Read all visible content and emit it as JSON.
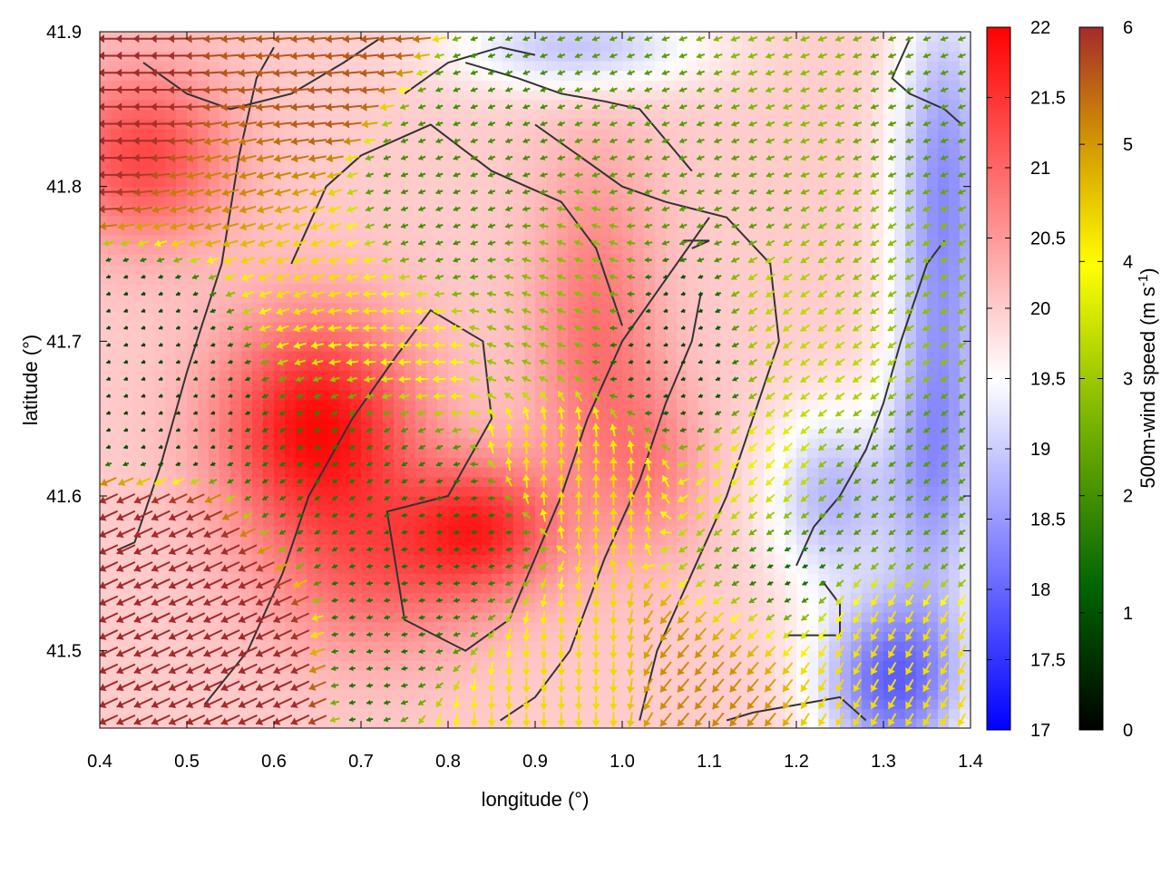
{
  "chart_data": {
    "type": "heatmap",
    "title": "",
    "xlabel": "longitude (°)",
    "ylabel": "latitude (°)",
    "xlim": [
      0.4,
      1.4
    ],
    "ylim": [
      41.45,
      41.9
    ],
    "x_ticks": [
      0.4,
      0.5,
      0.6,
      0.7,
      0.8,
      0.9,
      1.0,
      1.1,
      1.2,
      1.3,
      1.4
    ],
    "x_tick_labels": [
      "0.4",
      "0.5",
      "0.6",
      "0.7",
      "0.8",
      "0.9",
      "1.0",
      "1.1",
      "1.2",
      "1.3",
      "1.4"
    ],
    "y_ticks": [
      41.5,
      41.6,
      41.7,
      41.8,
      41.9
    ],
    "y_tick_labels": [
      "41.5",
      "41.6",
      "41.7",
      "41.8",
      "41.9"
    ],
    "grid": false,
    "temperature_field": {
      "colorscale": [
        "#0000ff",
        "#ffffff",
        "#ff0000"
      ],
      "range": [
        17,
        22
      ],
      "colorbar_ticks": [
        17,
        17.5,
        18,
        18.5,
        19,
        19.5,
        20,
        20.5,
        21,
        21.5,
        22
      ],
      "colorbar_tick_labels": [
        "17",
        "17.5",
        "18",
        "18.5",
        "19",
        "19.5",
        "20",
        "20.5",
        "21",
        "21.5",
        "22"
      ],
      "base_value": 20,
      "features": [
        {
          "lon": 0.65,
          "lat": 41.645,
          "amp": 1.9,
          "sx": 0.08,
          "sy": 0.05
        },
        {
          "lon": 0.84,
          "lat": 41.58,
          "amp": 1.4,
          "sx": 0.06,
          "sy": 0.03
        },
        {
          "lon": 0.45,
          "lat": 41.82,
          "amp": 1.3,
          "sx": 0.07,
          "sy": 0.04
        },
        {
          "lon": 0.72,
          "lat": 41.55,
          "amp": 0.9,
          "sx": 0.09,
          "sy": 0.04
        },
        {
          "lon": 0.97,
          "lat": 41.7,
          "amp": 0.9,
          "sx": 0.05,
          "sy": 0.08
        },
        {
          "lon": 1.04,
          "lat": 41.62,
          "amp": 0.6,
          "sx": 0.04,
          "sy": 0.04
        },
        {
          "lon": 1.37,
          "lat": 41.8,
          "amp": -1.6,
          "sx": 0.04,
          "sy": 0.09
        },
        {
          "lon": 1.31,
          "lat": 41.48,
          "amp": -2.0,
          "sx": 0.06,
          "sy": 0.04
        },
        {
          "lon": 1.24,
          "lat": 41.6,
          "amp": -1.2,
          "sx": 0.05,
          "sy": 0.04
        },
        {
          "lon": 0.95,
          "lat": 41.89,
          "amp": -1.1,
          "sx": 0.1,
          "sy": 0.02
        },
        {
          "lon": 1.36,
          "lat": 41.62,
          "amp": -1.4,
          "sx": 0.04,
          "sy": 0.07
        }
      ]
    },
    "wind_field": {
      "label": "500m-wind speed (m s-1)",
      "label_main": "500m-wind speed (m s",
      "label_sup": "-1",
      "label_end": ")",
      "colorscale": [
        "#000000",
        "#006400",
        "#7fb800",
        "#ffff00",
        "#d49b00",
        "#a52a2a"
      ],
      "range": [
        0,
        6
      ],
      "colorbar_ticks": [
        0,
        1,
        2,
        3,
        4,
        5,
        6
      ],
      "colorbar_tick_labels": [
        "0",
        "1",
        "2",
        "3",
        "4",
        "5",
        "6"
      ],
      "grid_step_lon": 0.02,
      "grid_step_lat": 0.011,
      "samples": [
        {
          "lon": 0.45,
          "lat": 41.85,
          "speed": 6.0,
          "dir_deg": 180
        },
        {
          "lon": 0.6,
          "lat": 41.87,
          "speed": 5.5,
          "dir_deg": 185
        },
        {
          "lon": 0.55,
          "lat": 41.8,
          "speed": 5.0,
          "dir_deg": 195
        },
        {
          "lon": 0.47,
          "lat": 41.52,
          "speed": 6.0,
          "dir_deg": 205
        },
        {
          "lon": 0.5,
          "lat": 41.7,
          "speed": 0.8,
          "dir_deg": 200
        },
        {
          "lon": 0.62,
          "lat": 41.74,
          "speed": 4.0,
          "dir_deg": 200
        },
        {
          "lon": 0.72,
          "lat": 41.7,
          "speed": 3.8,
          "dir_deg": 180
        },
        {
          "lon": 0.68,
          "lat": 41.64,
          "speed": 1.5,
          "dir_deg": 210
        },
        {
          "lon": 0.82,
          "lat": 41.55,
          "speed": 1.4,
          "dir_deg": 190
        },
        {
          "lon": 0.8,
          "lat": 41.78,
          "speed": 1.8,
          "dir_deg": 200
        },
        {
          "lon": 0.92,
          "lat": 41.72,
          "speed": 2.5,
          "dir_deg": 160
        },
        {
          "lon": 0.97,
          "lat": 41.62,
          "speed": 4.0,
          "dir_deg": 90
        },
        {
          "lon": 0.92,
          "lat": 41.5,
          "speed": 4.0,
          "dir_deg": 270
        },
        {
          "lon": 1.05,
          "lat": 41.68,
          "speed": 0.8,
          "dir_deg": 200
        },
        {
          "lon": 1.1,
          "lat": 41.82,
          "speed": 2.0,
          "dir_deg": 200
        },
        {
          "lon": 1.2,
          "lat": 41.86,
          "speed": 2.5,
          "dir_deg": 200
        },
        {
          "lon": 1.3,
          "lat": 41.75,
          "speed": 2.5,
          "dir_deg": 210
        },
        {
          "lon": 1.22,
          "lat": 41.7,
          "speed": 3.0,
          "dir_deg": 215
        },
        {
          "lon": 1.15,
          "lat": 41.6,
          "speed": 3.5,
          "dir_deg": 225
        },
        {
          "lon": 1.12,
          "lat": 41.5,
          "speed": 5.0,
          "dir_deg": 230
        },
        {
          "lon": 1.27,
          "lat": 41.5,
          "speed": 4.0,
          "dir_deg": 240
        },
        {
          "lon": 1.3,
          "lat": 41.6,
          "speed": 2.0,
          "dir_deg": 215
        },
        {
          "lon": 1.35,
          "lat": 41.85,
          "speed": 2.0,
          "dir_deg": 200
        },
        {
          "lon": 1.17,
          "lat": 41.55,
          "speed": 0.8,
          "dir_deg": 200
        }
      ]
    },
    "contours": [
      [
        [
          0.42,
          41.565
        ],
        [
          0.44,
          41.57
        ],
        [
          0.47,
          41.62
        ],
        [
          0.5,
          41.68
        ],
        [
          0.54,
          41.75
        ],
        [
          0.56,
          41.82
        ],
        [
          0.58,
          41.87
        ],
        [
          0.6,
          41.89
        ]
      ],
      [
        [
          0.52,
          41.465
        ],
        [
          0.57,
          41.5
        ],
        [
          0.61,
          41.55
        ],
        [
          0.64,
          41.6
        ],
        [
          0.69,
          41.65
        ],
        [
          0.74,
          41.69
        ],
        [
          0.78,
          41.72
        ],
        [
          0.84,
          41.7
        ],
        [
          0.85,
          41.65
        ],
        [
          0.8,
          41.6
        ],
        [
          0.73,
          41.59
        ],
        [
          0.75,
          41.52
        ],
        [
          0.82,
          41.5
        ],
        [
          0.87,
          41.52
        ],
        [
          0.9,
          41.56
        ],
        [
          0.93,
          41.6
        ],
        [
          0.96,
          41.65
        ],
        [
          1.0,
          41.7
        ],
        [
          1.05,
          41.74
        ],
        [
          1.1,
          41.78
        ]
      ],
      [
        [
          0.62,
          41.75
        ],
        [
          0.66,
          41.8
        ],
        [
          0.7,
          41.82
        ],
        [
          0.78,
          41.84
        ],
        [
          0.85,
          41.81
        ],
        [
          0.93,
          41.79
        ],
        [
          0.97,
          41.76
        ],
        [
          1.0,
          41.71
        ]
      ],
      [
        [
          0.45,
          41.88
        ],
        [
          0.5,
          41.86
        ],
        [
          0.55,
          41.85
        ],
        [
          0.62,
          41.86
        ],
        [
          0.68,
          41.88
        ],
        [
          0.72,
          41.895
        ]
      ],
      [
        [
          0.75,
          41.86
        ],
        [
          0.8,
          41.88
        ],
        [
          0.86,
          41.89
        ],
        [
          0.9,
          41.885
        ]
      ],
      [
        [
          0.9,
          41.84
        ],
        [
          0.95,
          41.82
        ],
        [
          1.0,
          41.8
        ],
        [
          1.05,
          41.79
        ],
        [
          1.12,
          41.78
        ],
        [
          1.17,
          41.75
        ],
        [
          1.18,
          41.7
        ],
        [
          1.15,
          41.65
        ],
        [
          1.12,
          41.6
        ],
        [
          1.08,
          41.55
        ],
        [
          1.04,
          41.5
        ],
        [
          1.02,
          41.455
        ]
      ],
      [
        [
          1.08,
          41.76
        ],
        [
          1.1,
          41.765
        ],
        [
          1.07,
          41.765
        ]
      ],
      [
        [
          0.86,
          41.455
        ],
        [
          0.9,
          41.47
        ],
        [
          0.94,
          41.5
        ],
        [
          0.98,
          41.56
        ],
        [
          1.02,
          41.61
        ],
        [
          1.05,
          41.66
        ],
        [
          1.08,
          41.7
        ],
        [
          1.09,
          41.73
        ]
      ],
      [
        [
          1.12,
          41.455
        ],
        [
          1.15,
          41.46
        ],
        [
          1.2,
          41.465
        ],
        [
          1.25,
          41.47
        ],
        [
          1.28,
          41.455
        ]
      ],
      [
        [
          1.2,
          41.555
        ],
        [
          1.22,
          41.58
        ],
        [
          1.25,
          41.6
        ],
        [
          1.28,
          41.63
        ],
        [
          1.3,
          41.66
        ],
        [
          1.32,
          41.7
        ],
        [
          1.35,
          41.75
        ],
        [
          1.37,
          41.765
        ]
      ],
      [
        [
          1.19,
          41.51
        ],
        [
          1.22,
          41.51
        ],
        [
          1.25,
          41.51
        ],
        [
          1.25,
          41.53
        ],
        [
          1.23,
          41.545
        ]
      ],
      [
        [
          1.33,
          41.895
        ],
        [
          1.31,
          41.87
        ],
        [
          1.33,
          41.86
        ],
        [
          1.37,
          41.85
        ],
        [
          1.39,
          41.84
        ]
      ],
      [
        [
          0.82,
          41.88
        ],
        [
          0.88,
          41.87
        ],
        [
          0.93,
          41.86
        ],
        [
          0.98,
          41.855
        ],
        [
          1.02,
          41.85
        ],
        [
          1.05,
          41.83
        ],
        [
          1.08,
          41.81
        ]
      ]
    ]
  }
}
